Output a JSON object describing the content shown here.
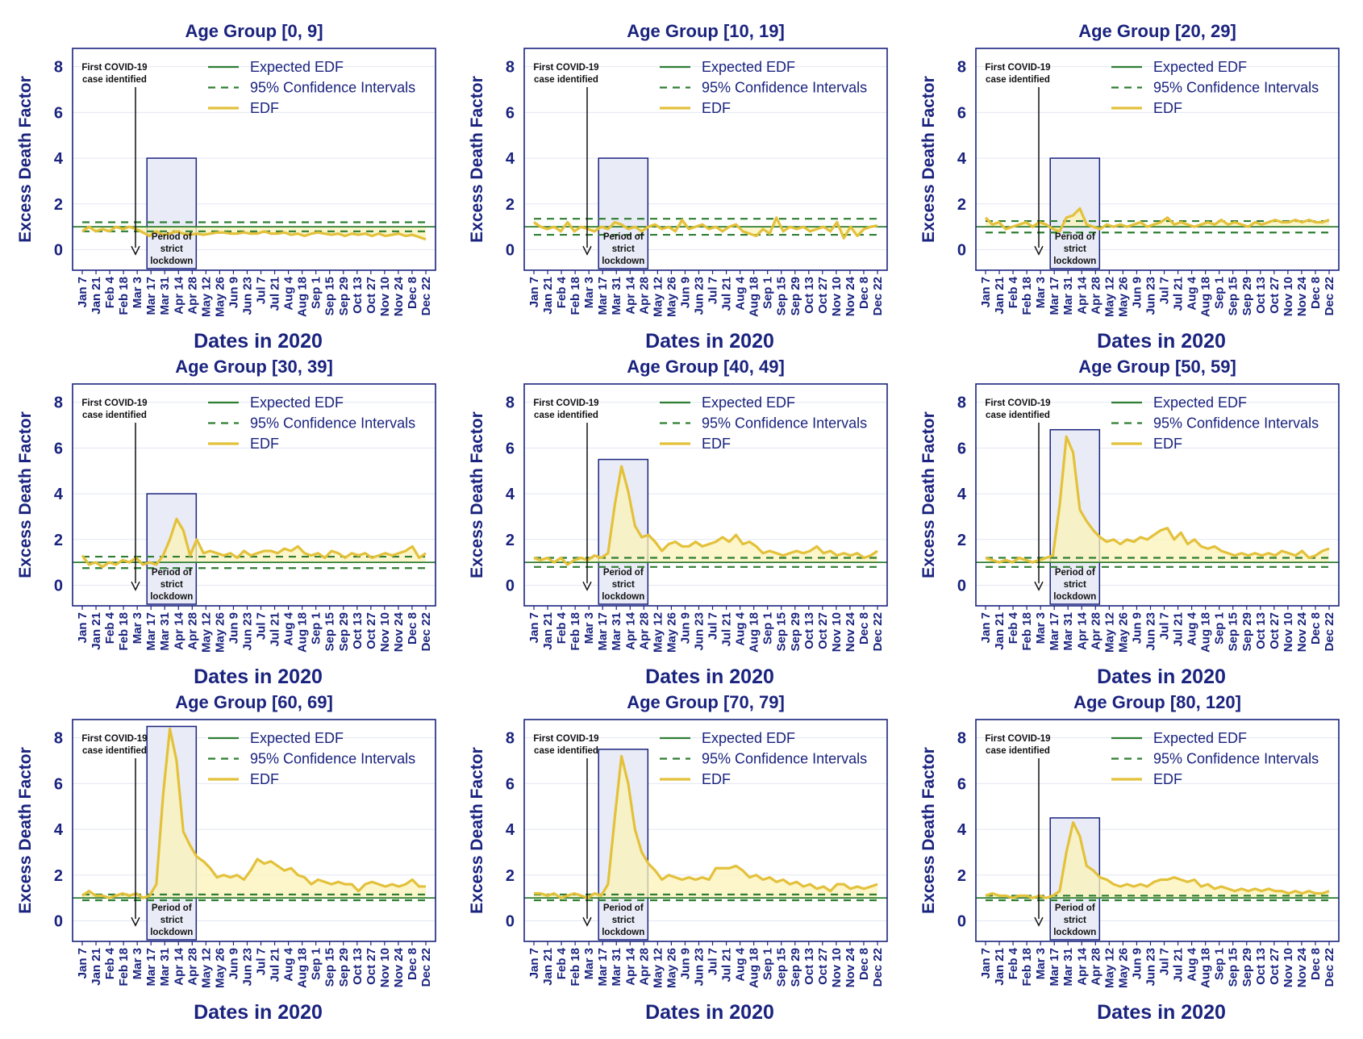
{
  "colors": {
    "navy": "#1a237e",
    "expected": "#2e7d32",
    "ci": "#2e7d32",
    "edf": "#e3c13b",
    "edf_fill": "#fbf3b8",
    "lockdown_fill": "#e9ecf7",
    "grid": "#e3e7f3"
  },
  "labels": {
    "x_axis": "Dates in 2020",
    "y_axis": "Excess Death Factor",
    "annotation_line1": "First COVID-19",
    "annotation_line2": "case identified",
    "lockdown_line1": "Period of",
    "lockdown_line2": "strict",
    "lockdown_line3": "lockdown",
    "legend_expected": "Expected EDF",
    "legend_ci": "95% Confidence Intervals",
    "legend_edf": "EDF"
  },
  "chart_data": [
    {
      "type": "line",
      "title": "Age Group [0, 9]",
      "xlabel": "Dates in 2020",
      "ylabel": "Excess Death Factor",
      "ylim": [
        -0.9,
        8.8
      ],
      "yticks": [
        0,
        2,
        4,
        6,
        8
      ],
      "x_tick_labels": [
        "Jan 7",
        "Jan 21",
        "Feb 4",
        "Feb 18",
        "Mar 3",
        "Mar 17",
        "Mar 31",
        "Apr 14",
        "Apr 28",
        "May 12",
        "May 26",
        "Jun 9",
        "Jun 23",
        "Jul 7",
        "Jul 21",
        "Aug 4",
        "Aug 18",
        "Sep 1",
        "Sep 15",
        "Sep 29",
        "Oct 13",
        "Oct 27",
        "Nov 10",
        "Nov 24",
        "Dec 8",
        "Dec 22"
      ],
      "expected": 1.0,
      "ci": [
        0.8,
        1.2
      ],
      "lockdown_top": 4.0,
      "series": [
        {
          "name": "EDF",
          "values": [
            0.8,
            1.0,
            0.8,
            0.9,
            0.8,
            1.0,
            0.9,
            1.0,
            0.9,
            0.75,
            0.6,
            0.8,
            0.65,
            0.7,
            0.8,
            0.7,
            0.65,
            0.7,
            0.65,
            0.7,
            0.75,
            0.75,
            0.7,
            0.7,
            0.75,
            0.7,
            0.7,
            0.8,
            0.7,
            0.7,
            0.75,
            0.65,
            0.7,
            0.6,
            0.7,
            0.75,
            0.7,
            0.65,
            0.7,
            0.6,
            0.7,
            0.65,
            0.7,
            0.6,
            0.7,
            0.6,
            0.65,
            0.7,
            0.6,
            0.65,
            0.55,
            0.45
          ]
        }
      ]
    },
    {
      "type": "line",
      "title": "Age Group [10, 19]",
      "xlabel": "Dates in 2020",
      "ylabel": "Excess Death Factor",
      "ylim": [
        -0.9,
        8.8
      ],
      "yticks": [
        0,
        2,
        4,
        6,
        8
      ],
      "x_tick_labels": [
        "Jan 7",
        "Jan 21",
        "Feb 4",
        "Feb 18",
        "Mar 3",
        "Mar 17",
        "Mar 31",
        "Apr 14",
        "Apr 28",
        "May 12",
        "May 26",
        "Jun 9",
        "Jun 23",
        "Jul 7",
        "Jul 21",
        "Aug 4",
        "Aug 18",
        "Sep 1",
        "Sep 15",
        "Sep 29",
        "Oct 13",
        "Oct 27",
        "Nov 10",
        "Nov 24",
        "Dec 8",
        "Dec 22"
      ],
      "expected": 1.0,
      "ci": [
        0.65,
        1.35
      ],
      "lockdown_top": 4.0,
      "series": [
        {
          "name": "EDF",
          "values": [
            1.2,
            1.0,
            0.9,
            1.0,
            0.8,
            1.2,
            0.8,
            1.0,
            0.9,
            0.8,
            1.0,
            0.9,
            1.2,
            1.1,
            0.9,
            1.0,
            0.8,
            1.0,
            1.1,
            0.9,
            1.0,
            0.8,
            1.3,
            0.9,
            1.0,
            1.1,
            0.9,
            1.0,
            0.8,
            1.0,
            1.1,
            0.8,
            0.7,
            0.6,
            0.9,
            0.7,
            1.4,
            0.8,
            1.0,
            0.9,
            1.0,
            0.8,
            0.9,
            1.0,
            0.8,
            1.2,
            0.5,
            1.0,
            0.6,
            0.9,
            1.0,
            1.05
          ]
        }
      ]
    },
    {
      "type": "line",
      "title": "Age Group [20, 29]",
      "xlabel": "Dates in 2020",
      "ylabel": "Excess Death Factor",
      "ylim": [
        -0.9,
        8.8
      ],
      "yticks": [
        0,
        2,
        4,
        6,
        8
      ],
      "x_tick_labels": [
        "Jan 7",
        "Jan 21",
        "Feb 4",
        "Feb 18",
        "Mar 3",
        "Mar 17",
        "Mar 31",
        "Apr 14",
        "Apr 28",
        "May 12",
        "May 26",
        "Jun 9",
        "Jun 23",
        "Jul 7",
        "Jul 21",
        "Aug 4",
        "Aug 18",
        "Sep 1",
        "Sep 15",
        "Sep 29",
        "Oct 13",
        "Oct 27",
        "Nov 10",
        "Nov 24",
        "Dec 8",
        "Dec 22"
      ],
      "expected": 1.0,
      "ci": [
        0.75,
        1.25
      ],
      "lockdown_top": 4.0,
      "series": [
        {
          "name": "EDF",
          "values": [
            1.4,
            1.1,
            1.2,
            0.9,
            1.0,
            1.1,
            1.2,
            1.0,
            1.2,
            1.1,
            0.9,
            0.8,
            1.4,
            1.5,
            1.8,
            1.1,
            1.0,
            0.9,
            1.1,
            1.0,
            1.1,
            1.0,
            1.1,
            1.2,
            1.0,
            1.1,
            1.2,
            1.4,
            1.1,
            1.2,
            1.1,
            1.0,
            1.1,
            1.2,
            1.1,
            1.3,
            1.1,
            1.2,
            1.1,
            1.0,
            1.2,
            1.1,
            1.2,
            1.3,
            1.2,
            1.2,
            1.3,
            1.2,
            1.3,
            1.2,
            1.2,
            1.3
          ]
        }
      ]
    },
    {
      "type": "line",
      "title": "Age Group [30, 39]",
      "xlabel": "Dates in 2020",
      "ylabel": "Excess Death Factor",
      "ylim": [
        -0.9,
        8.8
      ],
      "yticks": [
        0,
        2,
        4,
        6,
        8
      ],
      "x_tick_labels": [
        "Jan 7",
        "Jan 21",
        "Feb 4",
        "Feb 18",
        "Mar 3",
        "Mar 17",
        "Mar 31",
        "Apr 14",
        "Apr 28",
        "May 12",
        "May 26",
        "Jun 9",
        "Jun 23",
        "Jul 7",
        "Jul 21",
        "Aug 4",
        "Aug 18",
        "Sep 1",
        "Sep 15",
        "Sep 29",
        "Oct 13",
        "Oct 27",
        "Nov 10",
        "Nov 24",
        "Dec 8",
        "Dec 22"
      ],
      "expected": 1.0,
      "ci": [
        0.75,
        1.25
      ],
      "lockdown_top": 4.0,
      "series": [
        {
          "name": "EDF",
          "values": [
            1.3,
            0.9,
            1.0,
            0.8,
            1.0,
            0.9,
            1.1,
            1.0,
            1.2,
            0.9,
            1.0,
            0.9,
            1.3,
            2.0,
            2.9,
            2.4,
            1.3,
            2.0,
            1.4,
            1.5,
            1.4,
            1.3,
            1.4,
            1.2,
            1.5,
            1.3,
            1.4,
            1.5,
            1.5,
            1.4,
            1.6,
            1.5,
            1.7,
            1.4,
            1.3,
            1.4,
            1.2,
            1.5,
            1.4,
            1.2,
            1.4,
            1.3,
            1.4,
            1.2,
            1.3,
            1.4,
            1.3,
            1.4,
            1.5,
            1.7,
            1.2,
            1.4
          ]
        }
      ]
    },
    {
      "type": "line",
      "title": "Age Group [40, 49]",
      "xlabel": "Dates in 2020",
      "ylabel": "Excess Death Factor",
      "ylim": [
        -0.9,
        8.8
      ],
      "yticks": [
        0,
        2,
        4,
        6,
        8
      ],
      "x_tick_labels": [
        "Jan 7",
        "Jan 21",
        "Feb 4",
        "Feb 18",
        "Mar 3",
        "Mar 17",
        "Mar 31",
        "Apr 14",
        "Apr 28",
        "May 12",
        "May 26",
        "Jun 9",
        "Jun 23",
        "Jul 7",
        "Jul 21",
        "Aug 4",
        "Aug 18",
        "Sep 1",
        "Sep 15",
        "Sep 29",
        "Oct 13",
        "Oct 27",
        "Nov 10",
        "Nov 24",
        "Dec 8",
        "Dec 22"
      ],
      "expected": 1.0,
      "ci": [
        0.8,
        1.2
      ],
      "lockdown_top": 5.5,
      "series": [
        {
          "name": "EDF",
          "values": [
            1.2,
            1.1,
            1.2,
            1.0,
            1.2,
            0.9,
            1.1,
            1.2,
            1.1,
            1.3,
            1.2,
            1.4,
            3.5,
            5.2,
            4.1,
            2.6,
            2.1,
            2.2,
            1.9,
            1.5,
            1.8,
            1.9,
            1.7,
            1.7,
            1.9,
            1.7,
            1.8,
            1.9,
            2.1,
            1.9,
            2.2,
            1.8,
            1.9,
            1.7,
            1.4,
            1.5,
            1.4,
            1.3,
            1.4,
            1.5,
            1.4,
            1.5,
            1.7,
            1.4,
            1.5,
            1.3,
            1.4,
            1.3,
            1.4,
            1.2,
            1.3,
            1.5
          ]
        }
      ]
    },
    {
      "type": "line",
      "title": "Age Group [50, 59]",
      "xlabel": "Dates in 2020",
      "ylabel": "Excess Death Factor",
      "ylim": [
        -0.9,
        8.8
      ],
      "yticks": [
        0,
        2,
        4,
        6,
        8
      ],
      "x_tick_labels": [
        "Jan 7",
        "Jan 21",
        "Feb 4",
        "Feb 18",
        "Mar 3",
        "Mar 17",
        "Mar 31",
        "Apr 14",
        "Apr 28",
        "May 12",
        "May 26",
        "Jun 9",
        "Jun 23",
        "Jul 7",
        "Jul 21",
        "Aug 4",
        "Aug 18",
        "Sep 1",
        "Sep 15",
        "Sep 29",
        "Oct 13",
        "Oct 27",
        "Nov 10",
        "Nov 24",
        "Dec 8",
        "Dec 22"
      ],
      "expected": 1.0,
      "ci": [
        0.8,
        1.2
      ],
      "lockdown_top": 6.8,
      "series": [
        {
          "name": "EDF",
          "values": [
            1.2,
            1.1,
            1.0,
            1.1,
            1.0,
            1.2,
            1.1,
            1.0,
            1.1,
            1.2,
            1.3,
            3.5,
            6.5,
            5.8,
            3.3,
            2.8,
            2.4,
            2.1,
            1.9,
            2.0,
            1.8,
            2.0,
            1.9,
            2.1,
            2.0,
            2.2,
            2.4,
            2.5,
            2.0,
            2.3,
            1.8,
            2.0,
            1.7,
            1.6,
            1.7,
            1.5,
            1.4,
            1.3,
            1.4,
            1.3,
            1.4,
            1.3,
            1.4,
            1.3,
            1.5,
            1.4,
            1.3,
            1.5,
            1.2,
            1.3,
            1.5,
            1.6
          ]
        }
      ]
    },
    {
      "type": "line",
      "title": "Age Group [60, 69]",
      "xlabel": "Dates in 2020",
      "ylabel": "Excess Death Factor",
      "ylim": [
        -0.9,
        8.8
      ],
      "yticks": [
        0,
        2,
        4,
        6,
        8
      ],
      "x_tick_labels": [
        "Jan 7",
        "Jan 21",
        "Feb 4",
        "Feb 18",
        "Mar 3",
        "Mar 17",
        "Mar 31",
        "Apr 14",
        "Apr 28",
        "May 12",
        "May 26",
        "Jun 9",
        "Jun 23",
        "Jul 7",
        "Jul 21",
        "Aug 4",
        "Aug 18",
        "Sep 1",
        "Sep 15",
        "Sep 29",
        "Oct 13",
        "Oct 27",
        "Nov 10",
        "Nov 24",
        "Dec 8",
        "Dec 22"
      ],
      "expected": 1.0,
      "ci": [
        0.9,
        1.15
      ],
      "lockdown_top": 8.5,
      "series": [
        {
          "name": "EDF",
          "values": [
            1.1,
            1.3,
            1.1,
            1.1,
            1.0,
            1.1,
            1.2,
            1.1,
            1.2,
            1.0,
            1.1,
            1.6,
            5.5,
            8.4,
            7.0,
            3.9,
            3.3,
            2.8,
            2.6,
            2.3,
            1.9,
            2.0,
            1.9,
            2.0,
            1.8,
            2.2,
            2.7,
            2.5,
            2.6,
            2.4,
            2.2,
            2.3,
            2.0,
            1.9,
            1.6,
            1.8,
            1.7,
            1.6,
            1.7,
            1.6,
            1.6,
            1.3,
            1.6,
            1.7,
            1.6,
            1.5,
            1.6,
            1.5,
            1.6,
            1.8,
            1.5,
            1.5
          ]
        }
      ]
    },
    {
      "type": "line",
      "title": "Age Group [70, 79]",
      "xlabel": "Dates in 2020",
      "ylabel": "Excess Death Factor",
      "ylim": [
        -0.9,
        8.8
      ],
      "yticks": [
        0,
        2,
        4,
        6,
        8
      ],
      "x_tick_labels": [
        "Jan 7",
        "Jan 21",
        "Feb 4",
        "Feb 18",
        "Mar 3",
        "Mar 17",
        "Mar 31",
        "Apr 14",
        "Apr 28",
        "May 12",
        "May 26",
        "Jun 9",
        "Jun 23",
        "Jul 7",
        "Jul 21",
        "Aug 4",
        "Aug 18",
        "Sep 1",
        "Sep 15",
        "Sep 29",
        "Oct 13",
        "Oct 27",
        "Nov 10",
        "Nov 24",
        "Dec 8",
        "Dec 22"
      ],
      "expected": 1.0,
      "ci": [
        0.9,
        1.15
      ],
      "lockdown_top": 7.5,
      "series": [
        {
          "name": "EDF",
          "values": [
            1.2,
            1.2,
            1.1,
            1.2,
            1.0,
            1.1,
            1.2,
            1.1,
            1.0,
            1.2,
            1.1,
            1.6,
            4.5,
            7.2,
            6.0,
            4.0,
            3.0,
            2.5,
            2.2,
            1.8,
            2.0,
            1.9,
            1.8,
            1.9,
            1.8,
            1.9,
            1.8,
            2.3,
            2.3,
            2.3,
            2.4,
            2.2,
            1.9,
            2.0,
            1.8,
            1.9,
            1.7,
            1.8,
            1.6,
            1.7,
            1.5,
            1.6,
            1.4,
            1.5,
            1.3,
            1.6,
            1.6,
            1.4,
            1.5,
            1.4,
            1.5,
            1.6
          ]
        }
      ]
    },
    {
      "type": "line",
      "title": "Age Group [80, 120]",
      "xlabel": "Dates in 2020",
      "ylabel": "Excess Death Factor",
      "ylim": [
        -0.9,
        8.8
      ],
      "yticks": [
        0,
        2,
        4,
        6,
        8
      ],
      "x_tick_labels": [
        "Jan 7",
        "Jan 21",
        "Feb 4",
        "Feb 18",
        "Mar 3",
        "Mar 17",
        "Mar 31",
        "Apr 14",
        "Apr 28",
        "May 12",
        "May 26",
        "Jun 9",
        "Jun 23",
        "Jul 7",
        "Jul 21",
        "Aug 4",
        "Aug 18",
        "Sep 1",
        "Sep 15",
        "Sep 29",
        "Oct 13",
        "Oct 27",
        "Nov 10",
        "Nov 24",
        "Dec 8",
        "Dec 22"
      ],
      "expected": 1.0,
      "ci": [
        0.9,
        1.1
      ],
      "lockdown_top": 4.5,
      "series": [
        {
          "name": "EDF",
          "values": [
            1.1,
            1.2,
            1.1,
            1.1,
            1.0,
            1.1,
            1.1,
            1.0,
            1.1,
            1.0,
            1.1,
            1.3,
            3.0,
            4.3,
            3.7,
            2.4,
            2.2,
            1.9,
            1.8,
            1.6,
            1.5,
            1.6,
            1.5,
            1.6,
            1.5,
            1.7,
            1.8,
            1.8,
            1.9,
            1.8,
            1.7,
            1.8,
            1.5,
            1.6,
            1.4,
            1.5,
            1.4,
            1.3,
            1.4,
            1.3,
            1.4,
            1.3,
            1.4,
            1.3,
            1.3,
            1.2,
            1.3,
            1.2,
            1.3,
            1.2,
            1.2,
            1.3
          ]
        }
      ]
    }
  ]
}
